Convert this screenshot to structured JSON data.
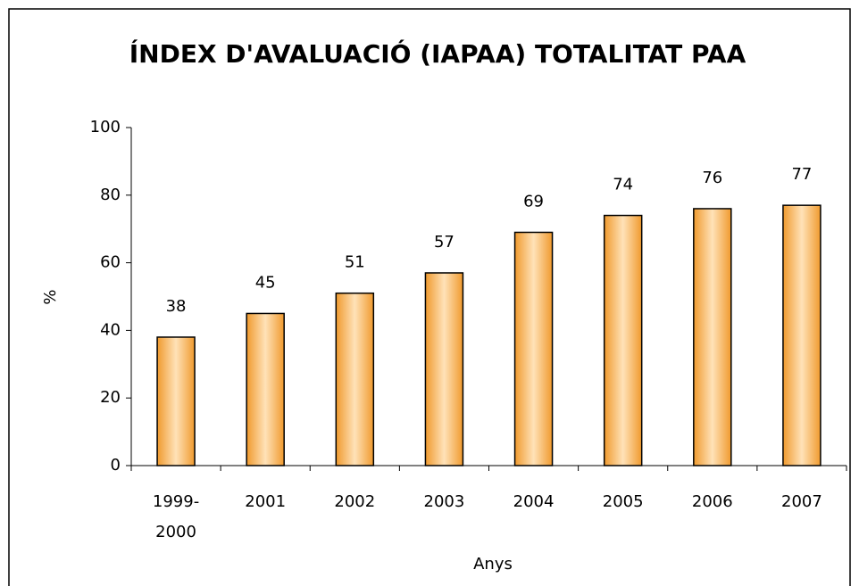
{
  "chart_data": {
    "type": "bar",
    "title": "ÍNDEX D'AVALUACIÓ (IAPAA) TOTALITAT PAA",
    "x_label": "Anys",
    "y_label": "%",
    "categories": [
      "1999-2000",
      "2001",
      "2002",
      "2003",
      "2004",
      "2005",
      "2006",
      "2007"
    ],
    "values": [
      38,
      45,
      51,
      57,
      69,
      74,
      76,
      77
    ],
    "color": "#f5a742",
    "ylim": [
      0,
      100
    ],
    "yticks": [
      0,
      20,
      40,
      60,
      80,
      100
    ],
    "grid": false
  }
}
